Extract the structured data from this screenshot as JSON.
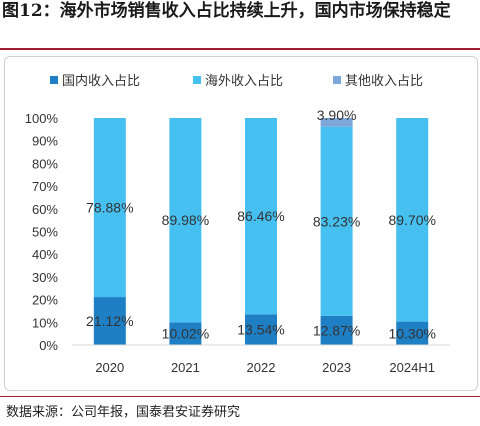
{
  "title": "图12：海外市场销售收入占比持续上升，国内市场保持稳定",
  "source": "数据来源：公司年报，国泰君安证券研究",
  "chart_data": {
    "type": "bar",
    "stacked": true,
    "categories": [
      "2020",
      "2021",
      "2022",
      "2023",
      "2024H1"
    ],
    "series": [
      {
        "name": "国内收入占比",
        "values": [
          21.12,
          10.02,
          13.54,
          12.87,
          10.3
        ],
        "color": "#1f7fc4",
        "labels": [
          "21.12%",
          "10.02%",
          "13.54%",
          "12.87%",
          "10.30%"
        ]
      },
      {
        "name": "海外收入占比",
        "values": [
          78.88,
          89.98,
          86.46,
          83.23,
          89.7
        ],
        "color": "#45c0f0",
        "labels": [
          "78.88%",
          "89.98%",
          "86.46%",
          "83.23%",
          "89.70%"
        ]
      },
      {
        "name": "其他收入占比",
        "values": [
          0,
          0,
          0,
          3.9,
          0
        ],
        "color": "#7da7d9",
        "labels": [
          "",
          "",
          "",
          "3.90%",
          ""
        ]
      }
    ],
    "yticks": [
      "0%",
      "10%",
      "20%",
      "30%",
      "40%",
      "50%",
      "60%",
      "70%",
      "80%",
      "90%",
      "100%"
    ],
    "ylim": [
      0,
      100
    ],
    "legend_position": "top",
    "grid": false
  }
}
